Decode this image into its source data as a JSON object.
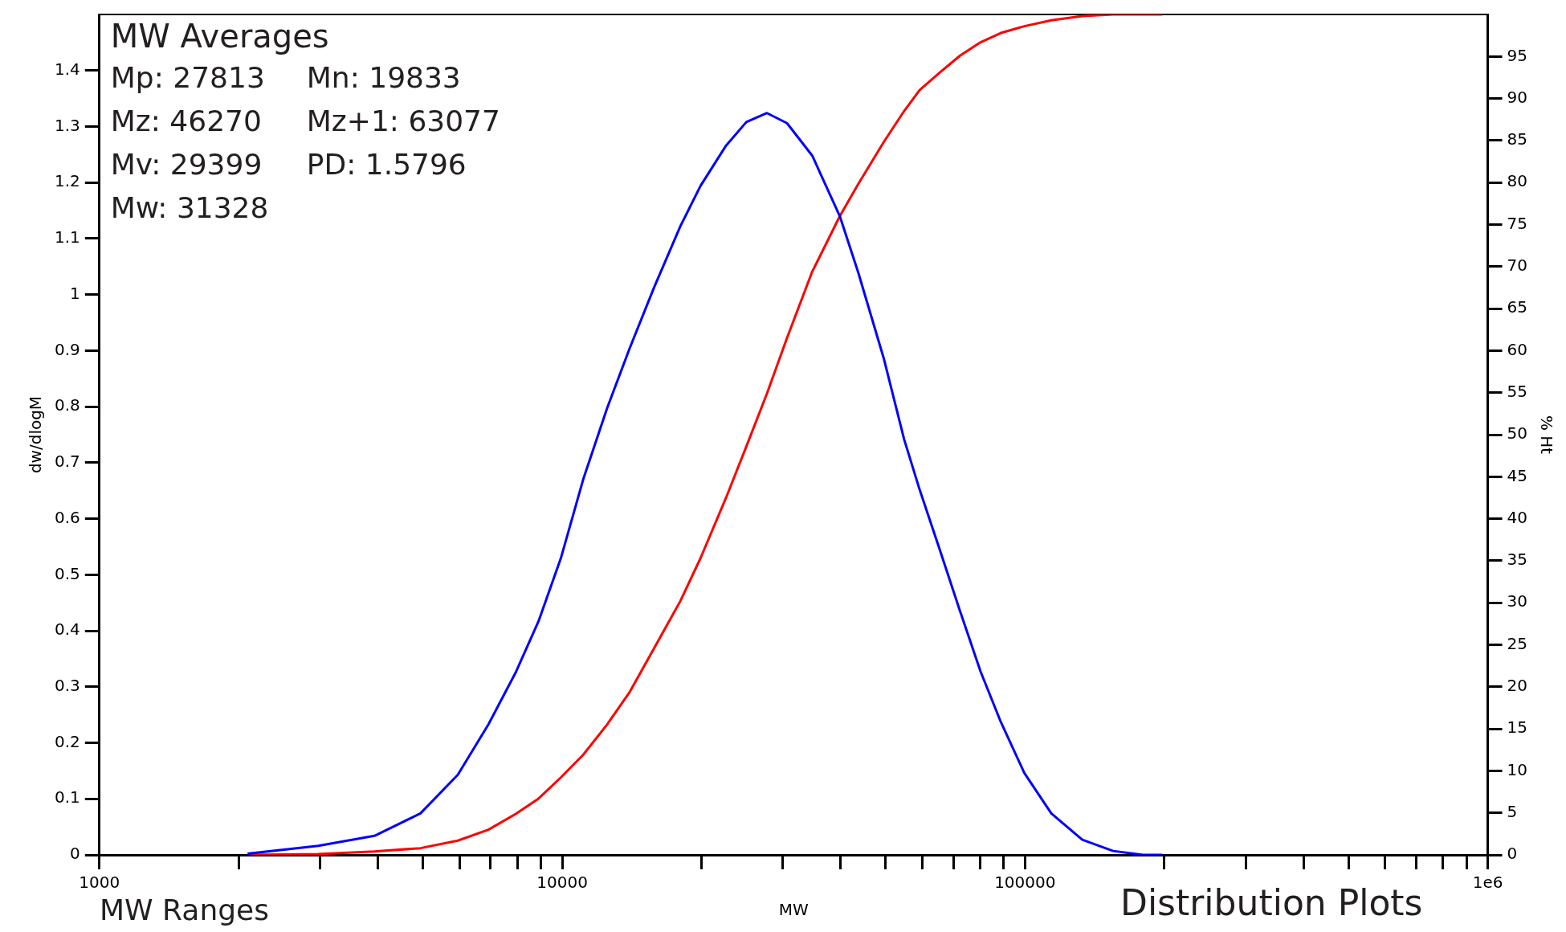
{
  "chart_data": {
    "type": "line",
    "xlabel": "MW",
    "ylabel": "dw/dlogM",
    "y2label": "% Ht",
    "x": [
      2090,
      2970,
      3930,
      4940,
      5950,
      6930,
      7950,
      8890,
      9930,
      11100,
      12500,
      14000,
      15800,
      18000,
      19900,
      22600,
      25000,
      27700,
      30600,
      34700,
      39800,
      43600,
      49500,
      54800,
      59200,
      65500,
      72400,
      80200,
      88700,
      99700,
      114000,
      133000,
      155000,
      180000,
      198000
    ],
    "series": [
      {
        "color": "#0000ff",
        "values": [
          0.002,
          0.016,
          0.034,
          0.074,
          0.143,
          0.233,
          0.327,
          0.417,
          0.529,
          0.67,
          0.797,
          0.905,
          1.013,
          1.122,
          1.194,
          1.266,
          1.308,
          1.324,
          1.306,
          1.248,
          1.14,
          1.04,
          0.887,
          0.742,
          0.652,
          0.544,
          0.435,
          0.327,
          0.237,
          0.146,
          0.074,
          0.027,
          0.007,
          0,
          0
        ]
      },
      {
        "color": "#ff0000",
        "axis": "y2",
        "values": [
          0,
          0.1,
          0.4,
          0.8,
          1.7,
          3,
          4.9,
          6.7,
          9.2,
          11.9,
          15.5,
          19.4,
          24.6,
          30.2,
          35.3,
          42.5,
          48.6,
          54.9,
          61.5,
          69.4,
          76,
          79.8,
          84.8,
          88.5,
          91,
          93.1,
          95.1,
          96.7,
          97.8,
          98.6,
          99.3,
          99.8,
          100,
          100,
          100
        ]
      }
    ],
    "log": "x",
    "grid": false,
    "legend": false,
    "marker": "none",
    "line_style": "solid",
    "xlim": [
      1000,
      1000000
    ],
    "xticks": [
      1000,
      {
        "value": 2000,
        "label": null
      },
      {
        "value": 3000,
        "label": null
      },
      {
        "value": 4000,
        "label": null
      },
      {
        "value": 5000,
        "label": null
      },
      {
        "value": 6000,
        "label": null
      },
      {
        "value": 7000,
        "label": null
      },
      {
        "value": 8000,
        "label": null
      },
      {
        "value": 9000,
        "label": null
      },
      10000,
      {
        "value": 20000,
        "label": null
      },
      {
        "value": 30000,
        "label": null
      },
      {
        "value": 40000,
        "label": null
      },
      {
        "value": 50000,
        "label": null
      },
      {
        "value": 60000,
        "label": null
      },
      {
        "value": 70000,
        "label": null
      },
      {
        "value": 80000,
        "label": null
      },
      {
        "value": 90000,
        "label": null
      },
      100000,
      {
        "value": 200000,
        "label": null
      },
      {
        "value": 300000,
        "label": null
      },
      {
        "value": 400000,
        "label": null
      },
      {
        "value": 500000,
        "label": null
      },
      {
        "value": 600000,
        "label": null
      },
      {
        "value": 700000,
        "label": null
      },
      {
        "value": 800000,
        "label": null
      },
      {
        "value": 900000,
        "label": null
      },
      {
        "value": 1000000,
        "label": "1e6"
      }
    ],
    "ylim": [
      0,
      1.5
    ],
    "yticks": [
      0,
      0.1,
      0.2,
      0.3,
      0.4,
      0.5,
      0.6,
      0.7,
      0.8,
      0.9,
      1,
      1.1,
      1.2,
      1.3,
      1.4
    ],
    "y2lim": [
      0,
      100
    ],
    "y2ticks": [
      0,
      5,
      10,
      15,
      20,
      25,
      30,
      35,
      40,
      45,
      50,
      55,
      60,
      65,
      70,
      75,
      80,
      85,
      90,
      95
    ],
    "annotations": [
      "MW Averages",
      "Mp: 27813",
      "Mn: 19833",
      "Mz: 46270",
      "Mz+1: 63077",
      "Mv: 29399",
      "PD: 1.5796",
      "Mw: 31328",
      "MW Ranges",
      "Distribution Plots"
    ]
  }
}
